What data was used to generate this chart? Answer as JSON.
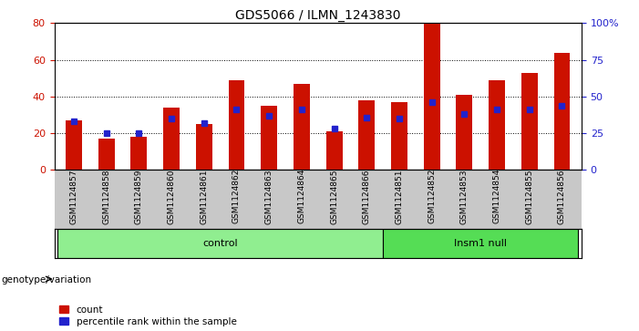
{
  "title": "GDS5066 / ILMN_1243830",
  "samples": [
    "GSM1124857",
    "GSM1124858",
    "GSM1124859",
    "GSM1124860",
    "GSM1124861",
    "GSM1124862",
    "GSM1124863",
    "GSM1124864",
    "GSM1124865",
    "GSM1124866",
    "GSM1124851",
    "GSM1124852",
    "GSM1124853",
    "GSM1124854",
    "GSM1124855",
    "GSM1124856"
  ],
  "counts": [
    27,
    17,
    18,
    34,
    25,
    49,
    35,
    47,
    21,
    38,
    37,
    80,
    41,
    49,
    53,
    64
  ],
  "percentiles": [
    33,
    25,
    25,
    35,
    32,
    41,
    37,
    41,
    28,
    36,
    35,
    46,
    38,
    41,
    41,
    44
  ],
  "groups": [
    "control",
    "control",
    "control",
    "control",
    "control",
    "control",
    "control",
    "control",
    "control",
    "control",
    "Insm1 null",
    "Insm1 null",
    "Insm1 null",
    "Insm1 null",
    "Insm1 null",
    "Insm1 null"
  ],
  "control_color": "#90EE90",
  "insm1_color": "#55DD55",
  "bar_color": "#CC1100",
  "blue_color": "#2222CC",
  "ylim_left": [
    0,
    80
  ],
  "ylim_right": [
    0,
    100
  ],
  "yticks_left": [
    0,
    20,
    40,
    60,
    80
  ],
  "yticks_right": [
    0,
    25,
    50,
    75,
    100
  ],
  "ytick_labels_right": [
    "0",
    "25",
    "50",
    "75",
    "100%"
  ],
  "bar_width": 0.5,
  "blue_marker_size": 5,
  "background_color": "#FFFFFF",
  "tick_area_bg": "#C8C8C8",
  "legend_count_label": "count",
  "legend_percentile_label": "percentile rank within the sample",
  "xlabel_group": "genotype/variation"
}
